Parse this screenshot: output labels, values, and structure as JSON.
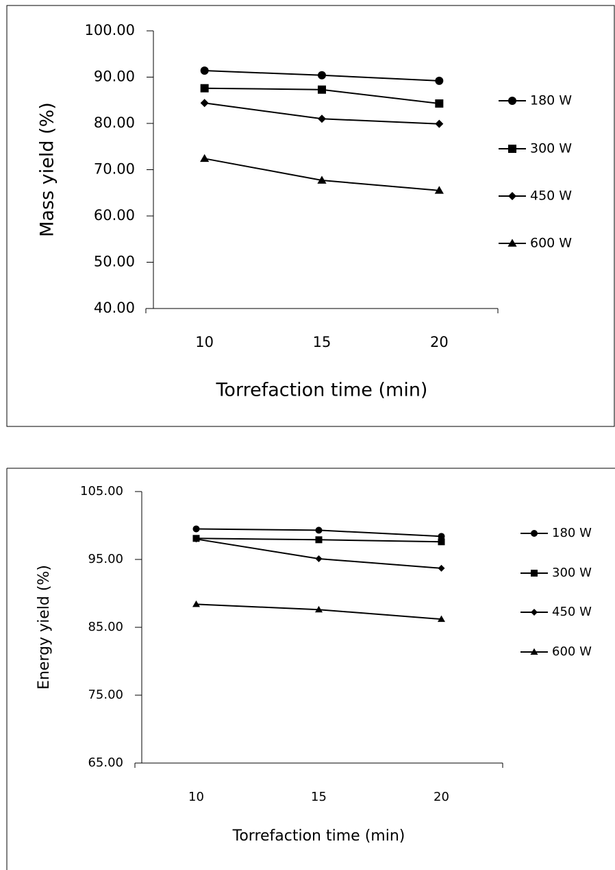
{
  "chart_data": [
    {
      "type": "line",
      "y_label": "Mass yield (%)",
      "x_label": "Torrefaction time (min)",
      "categories": [
        "10",
        "15",
        "20"
      ],
      "ylim": [
        40,
        100
      ],
      "yticks": [
        {
          "value": 40,
          "label": "40.00"
        },
        {
          "value": 50,
          "label": "50.00"
        },
        {
          "value": 60,
          "label": "60.00"
        },
        {
          "value": 70,
          "label": "70.00"
        },
        {
          "value": 80,
          "label": "80.00"
        },
        {
          "value": 90,
          "label": "90.00"
        },
        {
          "value": 100,
          "label": "100.00"
        }
      ],
      "series": [
        {
          "name": "180 W",
          "color": "#000000",
          "marker": "circle",
          "values": [
            91.4,
            90.4,
            89.2
          ]
        },
        {
          "name": "300 W",
          "color": "#000000",
          "marker": "square",
          "values": [
            87.6,
            87.3,
            84.3
          ]
        },
        {
          "name": "450 W",
          "color": "#000000",
          "marker": "diamond",
          "values": [
            84.4,
            81.0,
            79.9
          ]
        },
        {
          "name": "600 W",
          "color": "#000000",
          "marker": "triangle",
          "values": [
            72.4,
            67.7,
            65.5
          ]
        }
      ]
    },
    {
      "type": "line",
      "y_label": "Energy yield (%)",
      "x_label": "Torrefaction time (min)",
      "categories": [
        "10",
        "15",
        "20"
      ],
      "ylim": [
        65,
        105
      ],
      "yticks": [
        {
          "value": 65,
          "label": "65.00"
        },
        {
          "value": 75,
          "label": "75.00"
        },
        {
          "value": 85,
          "label": "85.00"
        },
        {
          "value": 95,
          "label": "95.00"
        },
        {
          "value": 105,
          "label": "105.00"
        }
      ],
      "series": [
        {
          "name": "180 W",
          "color": "#000000",
          "marker": "circle",
          "values": [
            99.5,
            99.3,
            98.4
          ]
        },
        {
          "name": "300 W",
          "color": "#000000",
          "marker": "square",
          "values": [
            98.1,
            97.9,
            97.6
          ]
        },
        {
          "name": "450 W",
          "color": "#000000",
          "marker": "diamond",
          "values": [
            98.0,
            95.1,
            93.7
          ]
        },
        {
          "name": "600 W",
          "color": "#000000",
          "marker": "triangle",
          "values": [
            88.4,
            87.6,
            86.2
          ]
        }
      ]
    }
  ]
}
